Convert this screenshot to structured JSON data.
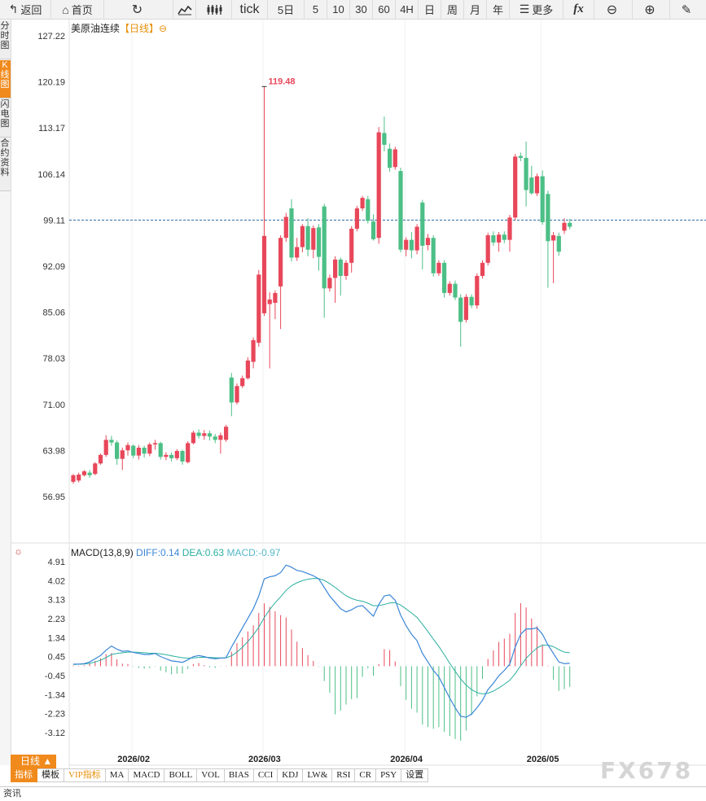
{
  "toolbar": {
    "back": "返回",
    "home": "首页",
    "tick": "tick",
    "periods": [
      "5日",
      "5",
      "10",
      "30",
      "60",
      "4H",
      "日",
      "周",
      "月",
      "年"
    ],
    "more": "更多"
  },
  "side_tabs": [
    "分时图",
    "K线图",
    "闪电图",
    "合约资料"
  ],
  "chart_title": {
    "name": "美原油连续",
    "period": "【日线】",
    "icon": "⊖"
  },
  "macd": {
    "label": "MACD(13,8,9)",
    "diff": "DIFF:0.14",
    "dea": "DEA:0.63",
    "macd": "MACD:-0.97"
  },
  "day_tab": "日线 ▲",
  "indicator_tabs": [
    "指标",
    "模板",
    "VIP指标",
    "MA",
    "MACD",
    "BOLL",
    "VOL",
    "BIAS",
    "CCI",
    "KDJ",
    "LW&",
    "RSI",
    "CR",
    "PSY",
    "设置"
  ],
  "footer": "资讯",
  "watermark": "FX678",
  "colors": {
    "up": "#e8475a",
    "down": "#4cbf86",
    "diff": "#3a86d6",
    "dea": "#2ab0a0",
    "accent": "#f08a1c"
  },
  "chart_data": [
    {
      "type": "candlestick",
      "y_ticks": [
        "127.22",
        "120.19",
        "113.17",
        "106.14",
        "99.11",
        "92.09",
        "85.06",
        "78.03",
        "71.00",
        "63.98",
        "56.95"
      ],
      "ylim": [
        56.95,
        127.22
      ],
      "x_labels": [
        "2026/02",
        "2026/03",
        "2026/04",
        "2026/05"
      ],
      "max_label": "119.48",
      "reference_line": 99.11,
      "candles": [
        [
          59.2,
          60.2,
          58.9,
          60.4
        ],
        [
          59.4,
          60.3,
          59.1,
          60.6
        ],
        [
          60.2,
          60.8,
          60.0,
          61.0
        ],
        [
          60.6,
          60.2,
          59.8,
          61.0
        ],
        [
          60.4,
          62.0,
          60.2,
          62.2
        ],
        [
          62.0,
          63.3,
          61.8,
          63.5
        ],
        [
          63.3,
          65.6,
          63.0,
          66.3
        ],
        [
          65.6,
          65.2,
          64.7,
          66.2
        ],
        [
          65.2,
          62.7,
          61.8,
          65.5
        ],
        [
          62.7,
          64.0,
          61.0,
          64.4
        ],
        [
          64.0,
          64.8,
          63.2,
          65.2
        ],
        [
          64.7,
          63.2,
          62.8,
          64.9
        ],
        [
          63.2,
          64.4,
          62.6,
          64.8
        ],
        [
          64.4,
          63.5,
          62.9,
          64.7
        ],
        [
          63.5,
          64.9,
          63.1,
          65.2
        ],
        [
          64.9,
          65.1,
          64.1,
          65.6
        ],
        [
          65.1,
          63.0,
          62.6,
          65.3
        ],
        [
          63.0,
          63.3,
          62.5,
          63.7
        ],
        [
          63.3,
          62.8,
          62.3,
          63.7
        ],
        [
          62.8,
          63.9,
          62.5,
          64.2
        ],
        [
          63.9,
          62.3,
          61.8,
          64.1
        ],
        [
          62.2,
          65.1,
          62.0,
          65.4
        ],
        [
          65.1,
          66.7,
          64.9,
          67.0
        ],
        [
          66.7,
          66.2,
          65.8,
          67.2
        ],
        [
          66.2,
          66.6,
          65.6,
          67.1
        ],
        [
          66.6,
          66.1,
          65.5,
          67.0
        ],
        [
          66.1,
          65.6,
          65.1,
          66.5
        ],
        [
          65.6,
          66.3,
          63.5,
          66.7
        ],
        [
          65.6,
          67.6,
          65.3,
          67.9
        ],
        [
          75.1,
          71.3,
          69.2,
          75.8
        ],
        [
          71.3,
          73.8,
          71.0,
          74.2
        ],
        [
          73.8,
          75.0,
          73.5,
          75.4
        ],
        [
          75.0,
          77.7,
          74.8,
          78.2
        ],
        [
          77.5,
          80.8,
          76.5,
          81.2
        ],
        [
          80.4,
          90.8,
          79.8,
          91.5
        ],
        [
          84.9,
          96.7,
          84.5,
          119.48
        ],
        [
          86.3,
          87.0,
          76.5,
          88.1
        ],
        [
          86.5,
          88.0,
          84.0,
          88.4
        ],
        [
          89.0,
          96.4,
          82.5,
          96.8
        ],
        [
          96.4,
          99.6,
          95.8,
          100.2
        ],
        [
          100.9,
          93.4,
          92.8,
          102.3
        ],
        [
          93.4,
          95.0,
          92.9,
          96.4
        ],
        [
          95.0,
          98.2,
          94.2,
          98.5
        ],
        [
          98.2,
          94.6,
          93.6,
          99.4
        ],
        [
          94.6,
          97.9,
          93.3,
          98.3
        ],
        [
          98.0,
          93.5,
          91.4,
          98.5
        ],
        [
          101.2,
          88.7,
          84.2,
          101.6
        ],
        [
          88.7,
          90.3,
          88.2,
          90.8
        ],
        [
          90.3,
          93.1,
          86.5,
          93.6
        ],
        [
          93.1,
          90.6,
          87.6,
          93.4
        ],
        [
          90.6,
          92.6,
          90.0,
          93.0
        ],
        [
          92.6,
          97.8,
          91.1,
          98.2
        ],
        [
          97.8,
          100.9,
          97.4,
          101.3
        ],
        [
          100.9,
          102.5,
          100.5,
          102.8
        ],
        [
          102.3,
          99.0,
          98.6,
          102.8
        ],
        [
          98.9,
          96.2,
          96.0,
          100.0
        ],
        [
          96.4,
          112.5,
          95.5,
          113.3
        ],
        [
          112.4,
          110.6,
          109.6,
          114.9
        ],
        [
          110.0,
          107.1,
          106.5,
          110.8
        ],
        [
          107.2,
          109.9,
          106.8,
          110.3
        ],
        [
          106.6,
          94.6,
          94.2,
          107.1
        ],
        [
          94.6,
          96.1,
          93.6,
          96.5
        ],
        [
          96.1,
          94.5,
          93.3,
          97.3
        ],
        [
          94.5,
          98.1,
          93.9,
          98.5
        ],
        [
          101.8,
          95.2,
          91.6,
          102.2
        ],
        [
          95.3,
          96.4,
          94.5,
          97.0
        ],
        [
          96.4,
          91.0,
          90.5,
          96.8
        ],
        [
          91.0,
          92.6,
          90.6,
          93.0
        ],
        [
          92.6,
          88.0,
          87.3,
          93.0
        ],
        [
          88.0,
          89.4,
          87.6,
          89.8
        ],
        [
          89.4,
          87.3,
          86.9,
          89.9
        ],
        [
          87.3,
          83.6,
          79.8,
          87.8
        ],
        [
          83.9,
          87.4,
          83.5,
          87.8
        ],
        [
          87.4,
          86.1,
          85.7,
          87.8
        ],
        [
          86.1,
          90.6,
          85.6,
          91.0
        ],
        [
          90.6,
          92.6,
          90.2,
          93.0
        ],
        [
          92.6,
          96.8,
          92.2,
          97.2
        ],
        [
          96.8,
          95.7,
          95.2,
          97.4
        ],
        [
          95.7,
          96.9,
          94.3,
          97.3
        ],
        [
          96.9,
          96.1,
          95.6,
          97.4
        ],
        [
          96.1,
          99.5,
          94.3,
          99.9
        ],
        [
          99.5,
          108.8,
          99.1,
          109.2
        ],
        [
          108.9,
          108.6,
          108.1,
          109.4
        ],
        [
          108.6,
          103.7,
          101.2,
          111.1
        ],
        [
          105.6,
          103.2,
          103.0,
          107.4
        ],
        [
          103.2,
          105.8,
          102.8,
          106.2
        ],
        [
          105.8,
          98.8,
          98.4,
          106.7
        ],
        [
          103.1,
          95.9,
          88.8,
          103.6
        ],
        [
          96.0,
          96.8,
          89.5,
          97.3
        ],
        [
          96.7,
          94.3,
          93.7,
          97.2
        ],
        [
          97.5,
          98.7,
          97.0,
          99.4
        ],
        [
          98.7,
          98.1,
          97.7,
          99.3
        ]
      ]
    },
    {
      "type": "macd",
      "y_ticks": [
        "4.91",
        "4.02",
        "3.13",
        "2.23",
        "1.34",
        "0.45",
        "-0.45",
        "-1.34",
        "-2.23",
        "-3.12"
      ],
      "ylim": [
        -3.12,
        4.91
      ],
      "series": [
        {
          "name": "DIFF",
          "values": [
            0.1,
            0.1,
            0.12,
            0.2,
            0.35,
            0.5,
            0.75,
            0.95,
            0.8,
            0.7,
            0.72,
            0.65,
            0.6,
            0.55,
            0.55,
            0.6,
            0.45,
            0.35,
            0.25,
            0.22,
            0.18,
            0.3,
            0.45,
            0.5,
            0.45,
            0.38,
            0.35,
            0.38,
            0.4,
            0.9,
            1.35,
            1.8,
            2.25,
            2.7,
            3.3,
            4.1,
            4.2,
            4.25,
            4.4,
            4.75,
            4.65,
            4.5,
            4.45,
            4.35,
            4.25,
            4.1,
            3.7,
            3.3,
            3.0,
            2.7,
            2.55,
            2.65,
            2.8,
            2.85,
            2.6,
            2.35,
            2.9,
            3.3,
            3.35,
            3.1,
            2.4,
            1.9,
            1.5,
            1.2,
            0.6,
            0.2,
            -0.2,
            -0.5,
            -1.0,
            -1.5,
            -1.95,
            -2.35,
            -2.4,
            -2.25,
            -1.95,
            -1.6,
            -1.1,
            -0.8,
            -0.45,
            -0.2,
            0.1,
            0.9,
            1.5,
            1.75,
            1.75,
            1.8,
            1.5,
            1.0,
            0.6,
            0.2,
            0.12,
            0.14
          ]
        },
        {
          "name": "DEA",
          "values": [
            0.08,
            0.09,
            0.1,
            0.13,
            0.2,
            0.28,
            0.4,
            0.55,
            0.6,
            0.63,
            0.66,
            0.66,
            0.65,
            0.63,
            0.61,
            0.61,
            0.58,
            0.54,
            0.49,
            0.44,
            0.4,
            0.38,
            0.39,
            0.41,
            0.42,
            0.41,
            0.4,
            0.39,
            0.39,
            0.49,
            0.66,
            0.89,
            1.16,
            1.47,
            1.83,
            2.28,
            2.66,
            2.98,
            3.26,
            3.56,
            3.78,
            3.92,
            4.02,
            4.09,
            4.12,
            4.11,
            4.03,
            3.88,
            3.7,
            3.5,
            3.31,
            3.18,
            3.1,
            3.05,
            2.96,
            2.84,
            2.85,
            2.9,
            2.97,
            2.99,
            2.87,
            2.69,
            2.5,
            2.29,
            1.97,
            1.63,
            1.27,
            0.93,
            0.54,
            0.14,
            -0.24,
            -0.6,
            -0.89,
            -1.1,
            -1.24,
            -1.3,
            -1.27,
            -1.17,
            -1.02,
            -0.85,
            -0.66,
            -0.35,
            0.02,
            0.37,
            0.63,
            0.86,
            0.99,
            0.99,
            0.92,
            0.78,
            0.66,
            0.63
          ]
        }
      ],
      "hist": [
        0.03,
        0.02,
        0.04,
        0.12,
        0.25,
        0.37,
        0.57,
        0.62,
        0.32,
        0.12,
        0.1,
        -0.02,
        -0.08,
        -0.12,
        -0.09,
        -0.02,
        -0.21,
        -0.29,
        -0.38,
        -0.35,
        -0.35,
        -0.13,
        0.1,
        0.15,
        0.05,
        -0.05,
        -0.08,
        -0.02,
        0.02,
        0.68,
        1.08,
        1.36,
        1.63,
        1.92,
        2.5,
        2.95,
        2.78,
        2.58,
        2.4,
        2.29,
        1.72,
        1.15,
        0.85,
        0.52,
        0.25,
        -0.02,
        -0.7,
        -1.25,
        -2.26,
        -2.08,
        -1.8,
        -1.55,
        -1.5,
        -0.5,
        -0.1,
        -0.45,
        0.1,
        0.8,
        0.76,
        0.22,
        -0.94,
        -1.58,
        -2.0,
        -2.18,
        -2.74,
        -2.86,
        -2.94,
        -2.86,
        -3.08,
        -3.28,
        -3.42,
        -3.5,
        -3.02,
        -2.3,
        -1.42,
        -0.6,
        0.34,
        0.74,
        1.14,
        1.3,
        1.52,
        2.5,
        2.96,
        2.76,
        2.24,
        1.88,
        1.02,
        0.02,
        -0.64,
        -1.16,
        -1.08,
        -0.97
      ]
    }
  ]
}
